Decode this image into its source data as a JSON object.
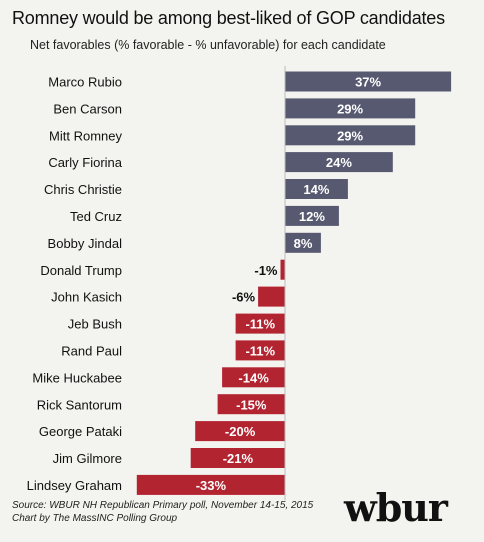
{
  "title": "Romney  would be among best-liked of GOP candidates",
  "subtitle": "Net favorables (% favorable - % unfavorable) for each candidate",
  "source_line1": "Source: WBUR NH Republican Primary poll, November 14-15, 2015",
  "source_line2": "Chart by The MassINC Polling Group",
  "logo_text": "wbur",
  "colors": {
    "positive": "#565970",
    "negative": "#b32431",
    "background": "#f3f3ef"
  },
  "chart_data": {
    "type": "bar",
    "orientation": "horizontal",
    "title": "Romney  would be among best-liked of GOP candidates",
    "subtitle": "Net favorables (% favorable - % unfavorable) for each candidate",
    "categories": [
      "Marco Rubio",
      "Ben Carson",
      "Mitt Romney",
      "Carly Fiorina",
      "Chris Christie",
      "Ted Cruz",
      "Bobby Jindal",
      "Donald Trump",
      "John Kasich",
      "Jeb Bush",
      "Rand Paul",
      "Mike Huckabee",
      "Rick Santorum",
      "George Pataki",
      "Jim Gilmore",
      "Lindsey Graham"
    ],
    "values": [
      37,
      29,
      29,
      24,
      14,
      12,
      8,
      -1,
      -6,
      -11,
      -11,
      -14,
      -15,
      -20,
      -21,
      -33
    ],
    "value_labels": [
      "37%",
      "29%",
      "29%",
      "24%",
      "14%",
      "12%",
      "8%",
      "-1%",
      "-6%",
      "-11%",
      "-11%",
      "-14%",
      "-15%",
      "-20%",
      "-21%",
      "-33%"
    ],
    "xlim": [
      -33,
      37
    ],
    "grid": false,
    "legend": "none"
  }
}
